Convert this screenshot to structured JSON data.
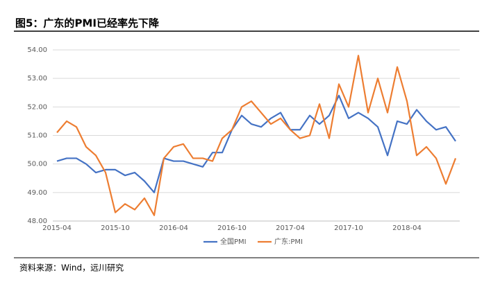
{
  "chart_data": {
    "type": "line",
    "title": "图5：广东的PMI已经率先下降",
    "source": "资料来源：Wind，远川研究",
    "categories": [
      "2015-04",
      null,
      null,
      null,
      null,
      null,
      "2015-10",
      null,
      null,
      null,
      null,
      null,
      "2016-04",
      null,
      null,
      null,
      null,
      null,
      "2016-10",
      null,
      null,
      null,
      null,
      null,
      "2017-04",
      null,
      null,
      null,
      null,
      null,
      "2017-10",
      null,
      null,
      null,
      null,
      null,
      "2018-04",
      null,
      null,
      null,
      null,
      null
    ],
    "series": [
      {
        "name": "全国PMI",
        "color": "#4472c4",
        "values": [
          50.1,
          50.2,
          50.2,
          50.0,
          49.7,
          49.8,
          49.8,
          49.6,
          49.7,
          49.4,
          49.0,
          50.2,
          50.1,
          50.1,
          50.0,
          49.9,
          50.4,
          50.4,
          51.2,
          51.7,
          51.4,
          51.3,
          51.6,
          51.8,
          51.2,
          51.2,
          51.7,
          51.4,
          51.7,
          52.4,
          51.6,
          51.8,
          51.6,
          51.3,
          50.3,
          51.5,
          51.4,
          51.9,
          51.5,
          51.2,
          51.3,
          50.8
        ]
      },
      {
        "name": "广东:PMI",
        "color": "#ed7d31",
        "values": [
          51.1,
          51.5,
          51.3,
          50.6,
          50.3,
          49.7,
          48.3,
          48.6,
          48.4,
          48.8,
          48.2,
          50.2,
          50.6,
          50.7,
          50.2,
          50.2,
          50.1,
          50.9,
          51.2,
          52.0,
          52.2,
          51.8,
          51.4,
          51.6,
          51.2,
          50.9,
          51.0,
          52.1,
          50.9,
          52.8,
          52.0,
          53.8,
          51.8,
          53.0,
          51.8,
          53.4,
          52.2,
          50.3,
          50.6,
          50.2,
          49.3,
          50.2
        ]
      }
    ],
    "ylim": [
      48,
      54
    ],
    "yticks": [
      {
        "value": 48,
        "label": "48.00"
      },
      {
        "value": 49,
        "label": "49.00"
      },
      {
        "value": 50,
        "label": "50.00"
      },
      {
        "value": 51,
        "label": "51.00"
      },
      {
        "value": 52,
        "label": "52.00"
      },
      {
        "value": 53,
        "label": "53.00"
      },
      {
        "value": 54,
        "label": "54.00"
      }
    ],
    "grid": true,
    "legend": "bottom"
  }
}
